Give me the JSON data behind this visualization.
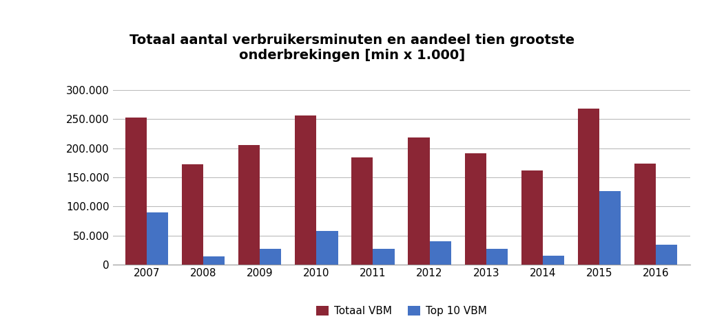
{
  "title": "Totaal aantal verbruikersminuten en aandeel tien grootste\nonderbrekingen [min x 1.000]",
  "years": [
    "2007",
    "2008",
    "2009",
    "2010",
    "2011",
    "2012",
    "2013",
    "2014",
    "2015",
    "2016"
  ],
  "totaal_vbm": [
    252000,
    172000,
    206000,
    256000,
    184000,
    218000,
    191000,
    162000,
    268000,
    174000
  ],
  "top10_vbm": [
    90000,
    15000,
    27000,
    58000,
    27000,
    40000,
    27000,
    16000,
    127000,
    35000
  ],
  "color_totaal": "#8B2635",
  "color_top10": "#4472C4",
  "ylim": [
    0,
    300000
  ],
  "yticks": [
    0,
    50000,
    100000,
    150000,
    200000,
    250000,
    300000
  ],
  "legend_totaal": "Totaal VBM",
  "legend_top10": "Top 10 VBM",
  "title_fontsize": 14,
  "tick_fontsize": 11,
  "legend_fontsize": 11,
  "background_color": "#FFFFFF",
  "grid_color": "#BBBBBB",
  "bar_width": 0.38
}
